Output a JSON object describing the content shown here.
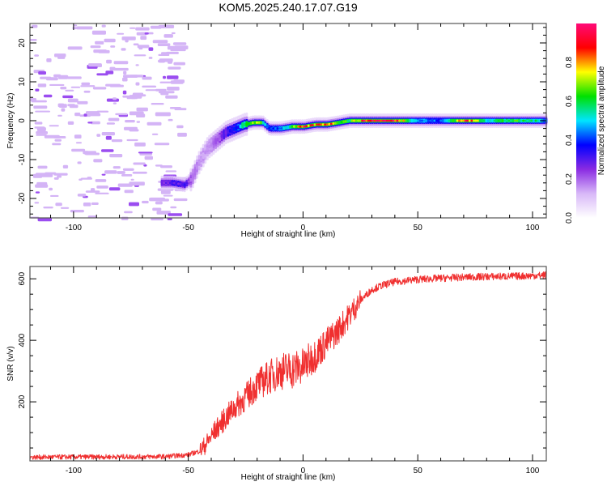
{
  "title": "KOM5.2025.240.17.07.G19",
  "chart_data": [
    {
      "type": "heatmap",
      "name": "spectrogram",
      "xlabel": "Height of straight line (km)",
      "ylabel": "Frequency (Hz)",
      "xlim": [
        -119,
        106
      ],
      "ylim": [
        -25,
        25
      ],
      "xticks": [
        -100,
        -50,
        0,
        50,
        100
      ],
      "yticks": [
        -20,
        -10,
        0,
        10,
        20
      ],
      "colorbar": {
        "label": "Normalized spectral amplitude",
        "range": [
          0,
          1
        ],
        "ticks": [
          "0.0",
          "0.2",
          "0.4",
          "0.6",
          "0.8"
        ],
        "stops": [
          "#ffffff",
          "#d8b8f8",
          "#8a2be2",
          "#0000ff",
          "#00e5ff",
          "#00e000",
          "#ffff00",
          "#ff0000",
          "#ff0a78"
        ]
      },
      "ridge": {
        "description": "Dominant Doppler-frequency trace vs height",
        "x": [
          -62,
          -57,
          -52,
          -49,
          -46,
          -42,
          -38,
          -34,
          -30,
          -26,
          -22,
          -18,
          -15,
          -10,
          -5,
          0,
          5,
          10,
          15,
          20,
          25,
          30,
          40,
          50,
          60,
          70,
          80,
          90,
          100,
          106
        ],
        "freq": [
          -16,
          -16,
          -16.5,
          -15,
          -11,
          -7,
          -5,
          -3,
          -2,
          -1,
          -0.5,
          -0.5,
          -2,
          -2,
          -1.5,
          -1.5,
          -1,
          -1,
          -0.5,
          0,
          0,
          0,
          0,
          0,
          0,
          0,
          0,
          0,
          0,
          0
        ],
        "amp": [
          0.25,
          0.3,
          0.3,
          0.2,
          0.15,
          0.15,
          0.2,
          0.3,
          0.35,
          0.55,
          0.75,
          0.55,
          0.4,
          0.45,
          0.6,
          0.85,
          0.8,
          0.9,
          0.7,
          0.6,
          0.85,
          0.95,
          0.9,
          0.45,
          0.4,
          0.9,
          0.55,
          0.6,
          0.55,
          0.45
        ]
      },
      "noise_region": {
        "x_max": -58,
        "amp": 0.05
      }
    },
    {
      "type": "line",
      "name": "snr",
      "xlabel": "Height of straight line (km)",
      "ylabel": "SNR (v/v)",
      "xlim": [
        -119,
        106
      ],
      "ylim": [
        8,
        640
      ],
      "xticks": [
        -100,
        -50,
        0,
        50,
        100
      ],
      "yticks": [
        200,
        400,
        600
      ],
      "color": "#f03030",
      "trend": {
        "x": [
          -119,
          -60,
          -50,
          -45,
          -42,
          -38,
          -30,
          -25,
          -20,
          -15,
          -10,
          -5,
          0,
          5,
          10,
          15,
          20,
          25,
          30,
          35,
          40,
          50,
          60,
          70,
          80,
          90,
          100,
          106
        ],
        "y": [
          20,
          22,
          28,
          40,
          65,
          110,
          180,
          215,
          255,
          280,
          300,
          305,
          315,
          350,
          390,
          430,
          480,
          530,
          565,
          580,
          590,
          598,
          602,
          605,
          607,
          608,
          610,
          612
        ]
      },
      "noise_amplitude": {
        "low": 8,
        "mid": 55,
        "high": 12
      }
    }
  ]
}
